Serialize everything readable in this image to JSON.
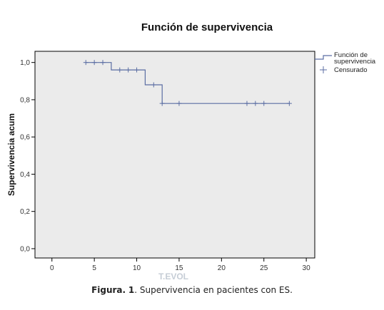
{
  "chart_data": {
    "type": "line",
    "title": "Función de supervivencia",
    "xlabel": "T.EVOL",
    "ylabel": "Supervivencia acum",
    "xlim": [
      -2,
      31
    ],
    "ylim": [
      -0.05,
      1.06
    ],
    "x_ticks": [
      0,
      5,
      10,
      15,
      20,
      25,
      30
    ],
    "x_tick_labels": [
      "0",
      "5",
      "10",
      "15",
      "20",
      "25",
      "30"
    ],
    "y_ticks": [
      0.0,
      0.2,
      0.4,
      0.6,
      0.8,
      1.0
    ],
    "y_tick_labels": [
      "0,0",
      "0,2",
      "0,4",
      "0,6",
      "0,8",
      "1,0"
    ],
    "grid": false,
    "legend_position": "right",
    "series": [
      {
        "name": "Función de supervivencia",
        "kind": "step",
        "color": "#5b6ea3",
        "points": [
          [
            4,
            1.0
          ],
          [
            7,
            1.0
          ],
          [
            7,
            0.96
          ],
          [
            11,
            0.96
          ],
          [
            11,
            0.88
          ],
          [
            13,
            0.88
          ],
          [
            13,
            0.78
          ],
          [
            28,
            0.78
          ]
        ]
      },
      {
        "name": "Censurado",
        "kind": "censor",
        "color": "#5b6ea3",
        "points": [
          [
            4,
            1.0
          ],
          [
            5,
            1.0
          ],
          [
            6,
            1.0
          ],
          [
            8,
            0.96
          ],
          [
            9,
            0.96
          ],
          [
            10,
            0.96
          ],
          [
            12,
            0.88
          ],
          [
            13,
            0.78
          ],
          [
            15,
            0.78
          ],
          [
            23,
            0.78
          ],
          [
            24,
            0.78
          ],
          [
            25,
            0.78
          ],
          [
            28,
            0.78
          ]
        ]
      }
    ],
    "legend": {
      "line_label_1": "Función de",
      "line_label_2": "supervivencia",
      "censor_label": "Censurado"
    },
    "colors": {
      "plot_bg": "#ebebeb",
      "line": "#5b6ea3"
    }
  },
  "caption": {
    "prefix": "Figura.",
    "number": "1",
    "text": ". Supervivencia  en pacientes  con ES."
  }
}
